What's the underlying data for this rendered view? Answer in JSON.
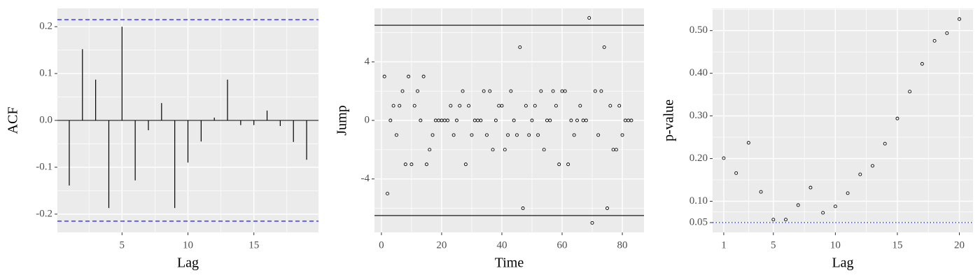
{
  "chart_data": [
    {
      "type": "spike",
      "xlabel": "Lag",
      "ylabel": "ACF",
      "color": "#000000",
      "grid": true,
      "x": [
        1,
        2,
        3,
        4,
        5,
        6,
        7,
        8,
        9,
        10,
        11,
        12,
        13,
        14,
        15,
        16,
        17,
        18,
        19
      ],
      "values": [
        -0.139,
        0.152,
        0.087,
        -0.187,
        0.2,
        -0.128,
        -0.021,
        0.037,
        -0.187,
        -0.09,
        -0.045,
        0.006,
        0.087,
        -0.01,
        -0.01,
        0.021,
        -0.012,
        -0.046,
        -0.084
      ],
      "xlim": [
        0.1,
        19.9
      ],
      "ylim": [
        -0.239,
        0.239
      ],
      "xticks": [
        5,
        10,
        15
      ],
      "yticks": [
        -0.2,
        -0.1,
        {
          "value": 0,
          "label": "0.0"
        },
        0.1,
        0.2
      ],
      "hlines": [
        {
          "y": 0,
          "color": "#000000",
          "dash": "solid"
        },
        {
          "y": -0.215,
          "color": "#0000ff",
          "dash": "dashed"
        },
        {
          "y": 0.215,
          "color": "#0000ff",
          "dash": "dashed"
        }
      ]
    },
    {
      "type": "scatter",
      "xlabel": "Time",
      "ylabel": "Jump",
      "color": "#000000",
      "grid": true,
      "x": [
        1,
        2,
        3,
        4,
        5,
        6,
        7,
        8,
        9,
        10,
        11,
        12,
        13,
        14,
        15,
        16,
        17,
        18,
        19,
        20,
        21,
        22,
        23,
        24,
        25,
        26,
        27,
        28,
        29,
        30,
        31,
        32,
        33,
        34,
        35,
        36,
        37,
        38,
        39,
        40,
        41,
        42,
        43,
        44,
        45,
        46,
        47,
        48,
        49,
        50,
        51,
        52,
        53,
        54,
        55,
        56,
        57,
        58,
        59,
        60,
        61,
        62,
        63,
        64,
        65,
        66,
        67,
        68,
        69,
        70,
        71,
        72,
        73,
        74,
        75,
        76,
        77,
        78,
        79,
        80,
        81,
        82,
        83
      ],
      "values": [
        3,
        -5,
        0,
        1,
        -1,
        1,
        2,
        -3,
        3,
        -3,
        1,
        2,
        0,
        3,
        -3,
        -2,
        -1,
        0,
        0,
        0,
        0,
        0,
        1,
        -1,
        0,
        1,
        2,
        -3,
        1,
        -1,
        0,
        0,
        0,
        2,
        -1,
        2,
        -2,
        0,
        1,
        1,
        -2,
        -1,
        2,
        0,
        -1,
        5,
        -6,
        1,
        -1,
        0,
        1,
        -1,
        2,
        -2,
        0,
        0,
        2,
        1,
        -3,
        2,
        2,
        -3,
        0,
        -1,
        0,
        1,
        0,
        0,
        7,
        -7,
        2,
        -1,
        2,
        5,
        -6,
        1,
        -2,
        -2,
        1,
        -1,
        0,
        0,
        0
      ],
      "xlim": [
        -2.3,
        87.2
      ],
      "ylim": [
        -7.65,
        7.65
      ],
      "xticks": [
        0,
        20,
        40,
        60,
        80
      ],
      "yticks": [
        -4,
        0,
        4
      ],
      "hlines": [
        {
          "y": -6.5,
          "color": "#000000",
          "dash": "solid"
        },
        {
          "y": 6.5,
          "color": "#000000",
          "dash": "solid"
        }
      ]
    },
    {
      "type": "scatter",
      "xlabel": "Lag",
      "ylabel": "p-value",
      "color": "#000000",
      "grid": true,
      "x": [
        1,
        2,
        3,
        4,
        5,
        6,
        7,
        8,
        9,
        10,
        11,
        12,
        13,
        14,
        15,
        16,
        17,
        18,
        19,
        20
      ],
      "values": [
        0.201,
        0.166,
        0.237,
        0.122,
        0.057,
        0.057,
        0.091,
        0.132,
        0.073,
        0.088,
        0.119,
        0.163,
        0.183,
        0.235,
        0.294,
        0.357,
        0.422,
        0.476,
        0.494,
        0.527
      ],
      "xlim": [
        0.1,
        21.1
      ],
      "ylim": [
        0.027,
        0.552
      ],
      "xticks": [
        1,
        5,
        10,
        15,
        20
      ],
      "yticks": [
        0.05,
        {
          "value": 0.1,
          "label": "0.10"
        },
        {
          "value": 0.2,
          "label": "0.20"
        },
        {
          "value": 0.3,
          "label": "0.30"
        },
        {
          "value": 0.4,
          "label": "0.40"
        },
        {
          "value": 0.5,
          "label": "0.50"
        }
      ],
      "hlines": [
        {
          "y": 0.05,
          "color": "#0000ff",
          "dash": "dotted"
        }
      ]
    }
  ]
}
